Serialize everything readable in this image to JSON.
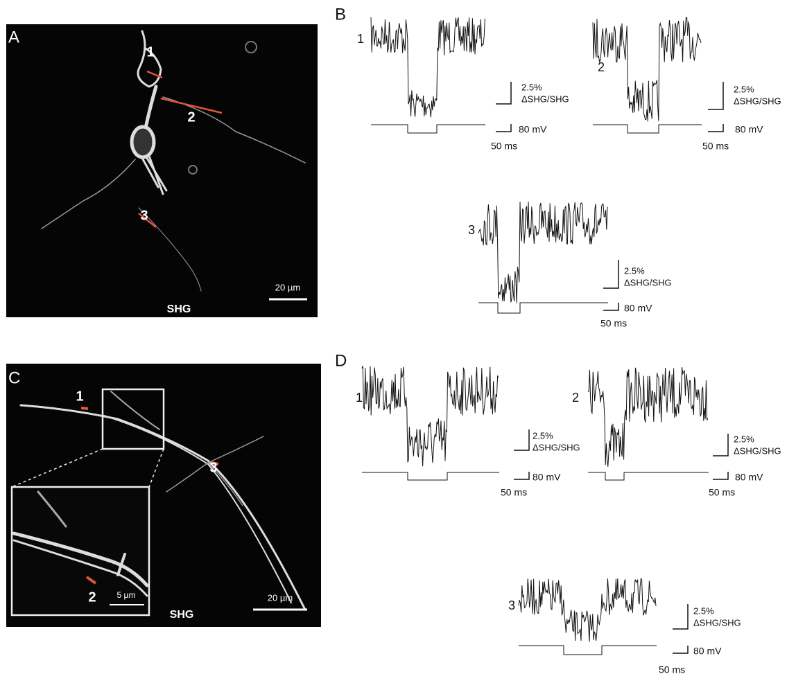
{
  "panels": [
    {
      "label": "A",
      "image": {
        "roi_labels": [
          "1",
          "2",
          "3"
        ],
        "scale_bar": "20 µm",
        "caption": "SHG"
      }
    },
    {
      "label": "B",
      "traces": [
        {
          "label": "1",
          "signal_scale": "2.5%",
          "signal_unit": "ΔSHG/SHG",
          "voltage_scale": "80 mV",
          "time_scale": "50 ms"
        },
        {
          "label": "2",
          "signal_scale": "2.5%",
          "signal_unit": "ΔSHG/SHG",
          "voltage_scale": "80 mV",
          "time_scale": "50 ms"
        },
        {
          "label": "3",
          "signal_scale": "2.5%",
          "signal_unit": "ΔSHG/SHG",
          "voltage_scale": "80 mV",
          "time_scale": "50 ms"
        }
      ]
    },
    {
      "label": "C",
      "image": {
        "roi_labels": [
          "1",
          "2",
          "3"
        ],
        "scale_bar": "20 µm",
        "inset_scale_bar": "5 µm",
        "caption": "SHG"
      }
    },
    {
      "label": "D",
      "traces": [
        {
          "label": "1",
          "signal_scale": "2.5%",
          "signal_unit": "ΔSHG/SHG",
          "voltage_scale": "80 mV",
          "time_scale": "50 ms"
        },
        {
          "label": "2",
          "signal_scale": "2.5%",
          "signal_unit": "ΔSHG/SHG",
          "voltage_scale": "80 mV",
          "time_scale": "50 ms"
        },
        {
          "label": "3",
          "signal_scale": "2.5%",
          "signal_unit": "ΔSHG/SHG",
          "voltage_scale": "80 mV",
          "time_scale": "50 ms"
        }
      ]
    }
  ]
}
